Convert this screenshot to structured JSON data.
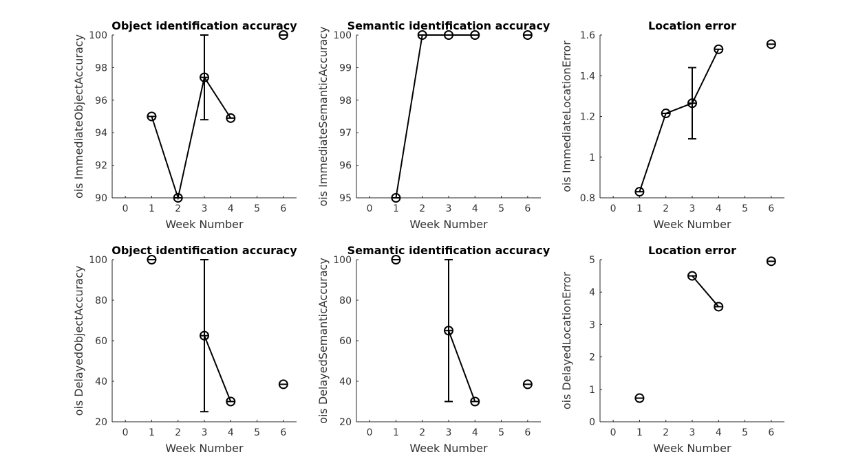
{
  "chart_data": [
    {
      "type": "line",
      "title": "Object identification accuracy",
      "xlabel": "Week Number",
      "ylabel": "ois ImmediateObjectAccuracy",
      "xlim": [
        -0.5,
        6.5
      ],
      "ylim": [
        90,
        100
      ],
      "xticks": [
        0,
        1,
        2,
        3,
        4,
        5,
        6
      ],
      "yticks": [
        90,
        92,
        94,
        96,
        98,
        100
      ],
      "grid": false,
      "series": [
        {
          "x": [
            1,
            2,
            3,
            4,
            6
          ],
          "y": [
            95.0,
            90.0,
            97.4,
            94.9,
            100.0
          ],
          "err_low": [
            null,
            null,
            94.8,
            null,
            null
          ],
          "err_high": [
            null,
            null,
            100.0,
            null,
            null
          ],
          "connect": [
            [
              0,
              1,
              2,
              3
            ]
          ],
          "marker": "circle"
        }
      ]
    },
    {
      "type": "line",
      "title": "Semantic identification accuracy",
      "xlabel": "Week Number",
      "ylabel": "ois ImmediateSemanticAccuracy",
      "xlim": [
        -0.5,
        6.5
      ],
      "ylim": [
        95,
        100
      ],
      "xticks": [
        0,
        1,
        2,
        3,
        4,
        5,
        6
      ],
      "yticks": [
        95,
        96,
        97,
        98,
        99,
        100
      ],
      "grid": false,
      "series": [
        {
          "x": [
            1,
            2,
            3,
            4,
            6
          ],
          "y": [
            95.0,
            100.0,
            100.0,
            100.0,
            100.0
          ],
          "err_low": [
            null,
            null,
            null,
            null,
            null
          ],
          "err_high": [
            null,
            null,
            null,
            null,
            null
          ],
          "connect": [
            [
              0,
              1,
              2,
              3
            ]
          ],
          "marker": "circle"
        }
      ]
    },
    {
      "type": "line",
      "title": "Location error",
      "xlabel": "Week Number",
      "ylabel": "ois ImmediateLocationError",
      "xlim": [
        -0.5,
        6.5
      ],
      "ylim": [
        0.8,
        1.6
      ],
      "xticks": [
        0,
        1,
        2,
        3,
        4,
        5,
        6
      ],
      "yticks": [
        0.8,
        1,
        1.2,
        1.4,
        1.6
      ],
      "grid": false,
      "series": [
        {
          "x": [
            1,
            2,
            3,
            4,
            6
          ],
          "y": [
            0.83,
            1.215,
            1.265,
            1.53,
            1.555
          ],
          "err_low": [
            null,
            null,
            1.09,
            null,
            null
          ],
          "err_high": [
            null,
            null,
            1.44,
            null,
            null
          ],
          "connect": [
            [
              0,
              1,
              2,
              3
            ]
          ],
          "marker": "circle"
        }
      ]
    },
    {
      "type": "line",
      "title": "Object identification accuracy",
      "xlabel": "Week Number",
      "ylabel": "ois DelayedObjectAccuracy",
      "xlim": [
        -0.5,
        6.5
      ],
      "ylim": [
        20,
        100
      ],
      "xticks": [
        0,
        1,
        2,
        3,
        4,
        5,
        6
      ],
      "yticks": [
        20,
        40,
        60,
        80,
        100
      ],
      "grid": false,
      "series": [
        {
          "x": [
            1,
            3,
            4,
            6
          ],
          "y": [
            100.0,
            62.5,
            30.0,
            38.5
          ],
          "err_low": [
            null,
            25.0,
            null,
            null
          ],
          "err_high": [
            null,
            100.0,
            null,
            null
          ],
          "connect": [
            [
              1,
              2
            ]
          ],
          "marker": "circle"
        }
      ]
    },
    {
      "type": "line",
      "title": "Semantic identification accuracy",
      "xlabel": "Week Number",
      "ylabel": "ois DelayedSemanticAccuracy",
      "xlim": [
        -0.5,
        6.5
      ],
      "ylim": [
        20,
        100
      ],
      "xticks": [
        0,
        1,
        2,
        3,
        4,
        5,
        6
      ],
      "yticks": [
        20,
        40,
        60,
        80,
        100
      ],
      "grid": false,
      "series": [
        {
          "x": [
            1,
            3,
            4,
            6
          ],
          "y": [
            100.0,
            65.0,
            30.0,
            38.5
          ],
          "err_low": [
            null,
            30.0,
            null,
            null
          ],
          "err_high": [
            null,
            100.0,
            null,
            null
          ],
          "connect": [
            [
              1,
              2
            ]
          ],
          "marker": "circle"
        }
      ]
    },
    {
      "type": "line",
      "title": "Location error",
      "xlabel": "Week Number",
      "ylabel": "ois DelayedLocationError",
      "xlim": [
        -0.5,
        6.5
      ],
      "ylim": [
        0,
        5
      ],
      "xticks": [
        0,
        1,
        2,
        3,
        4,
        5,
        6
      ],
      "yticks": [
        0,
        1,
        2,
        3,
        4,
        5
      ],
      "grid": false,
      "series": [
        {
          "x": [
            1,
            3,
            4,
            6
          ],
          "y": [
            0.73,
            4.5,
            3.55,
            4.95
          ],
          "err_low": [
            null,
            null,
            null,
            null
          ],
          "err_high": [
            null,
            null,
            null,
            null
          ],
          "connect": [
            [
              1,
              2
            ]
          ],
          "marker": "circle"
        }
      ]
    }
  ],
  "colors": {
    "line": "#000000",
    "axis": "#262626",
    "text": "#333333",
    "background": "#ffffff"
  }
}
